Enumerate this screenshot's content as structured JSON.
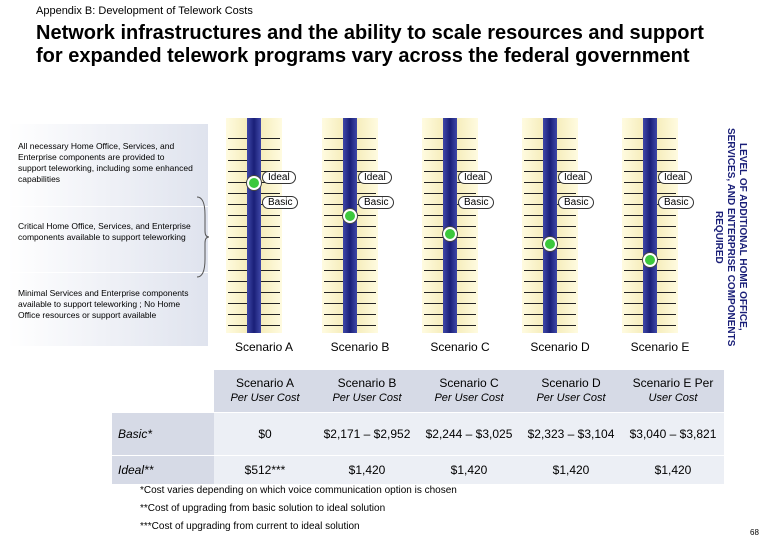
{
  "header": {
    "section": "Appendix B: Development of Telework Costs",
    "title": "Network infrastructures and the ability to scale resources and support for expanded telework programs vary across the federal government"
  },
  "levels": [
    "All necessary Home Office, Services, and Enterprise components are provided to support teleworking, including some enhanced capabilities",
    "Critical Home Office, Services, and Enterprise components available to support teleworking",
    "Minimal Services and Enterprise components available to support teleworking ; No Home Office resources or support available"
  ],
  "axis_label": "LEVEL OF ADDITIONAL HOME OFFICE, SERVICES, AND ENTERPRISE COMPONENTS REQUIRED",
  "scenarios": [
    {
      "label": "Scenario A",
      "ideal": "Ideal",
      "basic": "Basic"
    },
    {
      "label": "Scenario B",
      "ideal": "Ideal",
      "basic": "Basic"
    },
    {
      "label": "Scenario C",
      "ideal": "Ideal",
      "basic": "Basic"
    },
    {
      "label": "Scenario D",
      "ideal": "Ideal",
      "basic": "Basic"
    },
    {
      "label": "Scenario E",
      "ideal": "Ideal",
      "basic": "Basic"
    }
  ],
  "table": {
    "header": [
      [
        "Scenario A",
        "Per User Cost"
      ],
      [
        "Scenario B",
        "Per User Cost"
      ],
      [
        "Scenario C",
        "Per User Cost"
      ],
      [
        "Scenario D",
        "Per User Cost"
      ],
      [
        "Scenario E Per",
        "User Cost"
      ]
    ],
    "rows": [
      [
        "Basic*",
        "$0",
        "$2,171 – $2,952",
        "$2,244 – $3,025",
        "$2,323 – $3,104",
        "$3,040 – $3,821"
      ],
      [
        "Ideal**",
        "$512***",
        "$1,420",
        "$1,420",
        "$1,420",
        "$1,420"
      ]
    ]
  },
  "footnotes": [
    "*Cost varies depending on which voice communication option is chosen",
    "**Cost of upgrading from basic solution to ideal solution",
    "***Cost of upgrading from current to ideal solution"
  ],
  "page_number": "68"
}
